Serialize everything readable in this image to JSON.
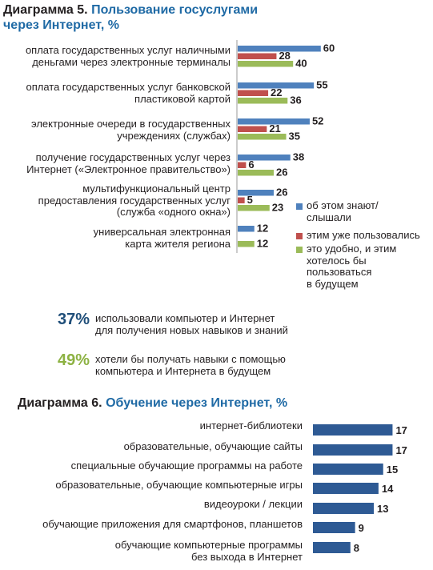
{
  "chart5": {
    "title_prefix": "Диаграмма 5.",
    "title_line1": "Пользование госуслугами",
    "title_line2": "через Интернет, %",
    "colors": {
      "know": "#4f81bd",
      "heard": "#c0504d",
      "used": "#9bbb59"
    },
    "legend": [
      {
        "label": "об этом знают/\nслышали",
        "color": "#4f81bd"
      },
      {
        "label": "этим уже пользовались",
        "color": "#c0504d"
      },
      {
        "label": "это удобно, и этим\nхотелось бы\nпользоваться\nв будущем",
        "color": "#9bbb59"
      }
    ]
  },
  "stats": [
    {
      "value": "37%",
      "color": "#1f4e79",
      "text": "использовали компьютер и Интернет\nдля получения новых навыков и знаний"
    },
    {
      "value": "49%",
      "color": "#8db243",
      "text": "хотели бы получать навыки с помощью\nкомпьютера и Интернета в будущем"
    }
  ],
  "chart6": {
    "title_prefix": "Диаграмма 6.",
    "title_rest": "Обучение через Интернет, %",
    "color": "#2e5a94"
  },
  "chart_data": [
    {
      "type": "bar",
      "orientation": "horizontal",
      "title": "Диаграмма 5. Пользование госуслугами через Интернет, %",
      "categories": [
        "оплата государственных услуг наличными\nденьгами через электронные терминалы",
        "оплата государственных услуг банковской\nпластиковой картой",
        "электронные очереди в государственных\nучреждениях (службах)",
        "получение государственных услуг через\nИнтернет («Электронное правительство»)",
        "мультифункциональный центр\nпредоставления государственных услуг\n(служба «одного окна»)",
        "универсальная электронная\nкарта жителя региона"
      ],
      "series": [
        {
          "name": "об этом знают/слышали",
          "values": [
            60,
            55,
            52,
            38,
            26,
            12
          ]
        },
        {
          "name": "этим уже пользовались",
          "values": [
            28,
            22,
            21,
            6,
            5,
            null
          ]
        },
        {
          "name": "это удобно, и этим хотелось бы пользоваться в будущем",
          "values": [
            40,
            36,
            35,
            26,
            23,
            12
          ]
        }
      ],
      "legend_position": "right"
    },
    {
      "type": "bar",
      "orientation": "horizontal",
      "title": "Диаграмма 6. Обучение через Интернет, %",
      "categories": [
        "интернет-библиотеки",
        "образовательные, обучающие сайты",
        "специальные обучающие программы на работе",
        "образовательные, обучающие компьютерные игры",
        "видеоуроки / лекции",
        "обучающие приложения для смартфонов, планшетов",
        "обучающие компьютерные программы\nбез выхода в Интернет"
      ],
      "values": [
        17,
        17,
        15,
        14,
        13,
        9,
        8
      ]
    }
  ]
}
